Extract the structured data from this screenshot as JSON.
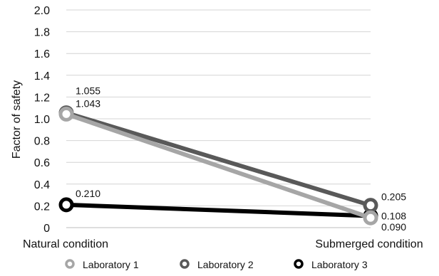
{
  "chart_data": {
    "type": "line",
    "categories": [
      "Natural condition",
      "Submerged condition"
    ],
    "ylabel": "Factor of safety",
    "ylim": [
      0,
      2.0
    ],
    "yticks": [
      "2.0",
      "1.8",
      "1.6",
      "1.4",
      "1.2",
      "1.0",
      "0.8",
      "0.6",
      "0.4",
      "0.2",
      "0"
    ],
    "grid": true,
    "legend_position": "bottom",
    "series": [
      {
        "name": "Laboratory 1",
        "values": [
          1.043,
          0.09
        ],
        "labels": [
          "1.043",
          "0.090"
        ],
        "color": "#a6a6a6"
      },
      {
        "name": "Laboratory 2",
        "values": [
          1.055,
          0.205
        ],
        "labels": [
          "1.055",
          "0.205"
        ],
        "color": "#595959"
      },
      {
        "name": "Laboratory 3",
        "values": [
          0.21,
          0.108
        ],
        "labels": [
          "0.210",
          "0.108"
        ],
        "color": "#000000"
      }
    ]
  }
}
